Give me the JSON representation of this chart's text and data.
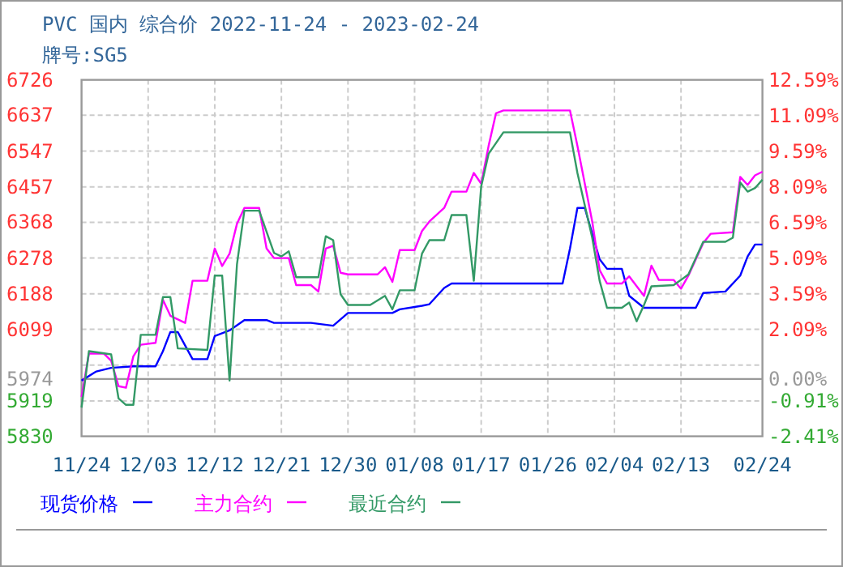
{
  "chart_data": {
    "type": "line",
    "title": "PVC 国内 综合价 2022-11-24 - 2023-02-24",
    "subtitle": "牌号:SG5",
    "xlim": [
      "2022-11-24",
      "2023-02-24"
    ],
    "xticks": [
      {
        "value": "2022-11-24",
        "label": "11/24"
      },
      {
        "value": "2022-12-03",
        "label": "12/03"
      },
      {
        "value": "2022-12-12",
        "label": "12/12"
      },
      {
        "value": "2022-12-21",
        "label": "12/21"
      },
      {
        "value": "2022-12-30",
        "label": "12/30"
      },
      {
        "value": "2023-01-08",
        "label": "01/08"
      },
      {
        "value": "2023-01-17",
        "label": "01/17"
      },
      {
        "value": "2023-01-26",
        "label": "01/26"
      },
      {
        "value": "2023-02-04",
        "label": "02/04"
      },
      {
        "value": "2023-02-13",
        "label": "02/13"
      },
      {
        "value": "2023-02-24",
        "label": "02/24"
      }
    ],
    "ylim": [
      5830,
      6726
    ],
    "yticks": [
      5830,
      5919,
      5974,
      {
        "value": 6009,
        "label": null
      },
      6099,
      6188,
      6278,
      6368,
      6457,
      6547,
      6637,
      6726
    ],
    "y2lim": [
      -2.41,
      12.59
    ],
    "y2ticks": [
      {
        "value": -2.41,
        "label": "-2.41%"
      },
      {
        "value": -0.91,
        "label": "-0.91%"
      },
      {
        "value": 0,
        "label": "0.00%"
      },
      {
        "value": 2.09,
        "label": "2.09%"
      },
      {
        "value": 3.59,
        "label": "3.59%"
      },
      {
        "value": 5.09,
        "label": "5.09%"
      },
      {
        "value": 6.59,
        "label": "6.59%"
      },
      {
        "value": 8.09,
        "label": "8.09%"
      },
      {
        "value": 9.59,
        "label": "9.59%"
      },
      {
        "value": 11.09,
        "label": "11.09%"
      },
      {
        "value": 12.59,
        "label": "12.59%"
      }
    ],
    "ref_lines": [
      {
        "axis": "y",
        "value": 5974,
        "color": "#999999"
      }
    ],
    "grid": true,
    "legend": "bottom",
    "series": [
      {
        "name": "现货价格",
        "color": "#0000ff",
        "x": [
          "2022-11-24",
          "2022-11-26",
          "2022-11-28",
          "2022-12-01",
          "2022-12-04",
          "2022-12-05",
          "2022-12-06",
          "2022-12-07",
          "2022-12-09",
          "2022-12-11",
          "2022-12-12",
          "2022-12-14",
          "2022-12-16",
          "2022-12-19",
          "2022-12-20",
          "2022-12-25",
          "2022-12-28",
          "2022-12-30",
          "2023-01-05",
          "2023-01-06",
          "2023-01-09",
          "2023-01-10",
          "2023-01-12",
          "2023-01-13",
          "2023-01-28",
          "2023-01-29",
          "2023-01-30",
          "2023-01-31",
          "2023-02-02",
          "2023-02-03",
          "2023-02-05",
          "2023-02-06",
          "2023-02-08",
          "2023-02-15",
          "2023-02-16",
          "2023-02-19",
          "2023-02-21",
          "2023-02-22",
          "2023-02-23",
          "2023-02-24"
        ],
        "values": [
          5970,
          5993,
          6002,
          6006,
          6006,
          6044,
          6092,
          6092,
          6024,
          6024,
          6082,
          6096,
          6122,
          6122,
          6115,
          6115,
          6108,
          6140,
          6140,
          6149,
          6158,
          6162,
          6203,
          6214,
          6214,
          6302,
          6404,
          6404,
          6275,
          6251,
          6251,
          6183,
          6153,
          6153,
          6190,
          6194,
          6234,
          6282,
          6312,
          6312
        ]
      },
      {
        "name": "主力合约",
        "color": "#ff00ff",
        "x": [
          "2022-11-24",
          "2022-11-25",
          "2022-11-27",
          "2022-11-28",
          "2022-11-29",
          "2022-11-30",
          "2022-12-01",
          "2022-12-02",
          "2022-12-04",
          "2022-12-05",
          "2022-12-06",
          "2022-12-08",
          "2022-12-09",
          "2022-12-11",
          "2022-12-12",
          "2022-12-13",
          "2022-12-14",
          "2022-12-15",
          "2022-12-16",
          "2022-12-18",
          "2022-12-19",
          "2022-12-20",
          "2022-12-22",
          "2022-12-23",
          "2022-12-25",
          "2022-12-26",
          "2022-12-27",
          "2022-12-28",
          "2022-12-29",
          "2022-12-30",
          "2023-01-03",
          "2023-01-04",
          "2023-01-05",
          "2023-01-06",
          "2023-01-08",
          "2023-01-09",
          "2023-01-10",
          "2023-01-12",
          "2023-01-13",
          "2023-01-15",
          "2023-01-16",
          "2023-01-17",
          "2023-01-18",
          "2023-01-19",
          "2023-01-20",
          "2023-01-29",
          "2023-01-30",
          "2023-02-01",
          "2023-02-02",
          "2023-02-03",
          "2023-02-05",
          "2023-02-06",
          "2023-02-08",
          "2023-02-09",
          "2023-02-10",
          "2023-02-12",
          "2023-02-13",
          "2023-02-14",
          "2023-02-16",
          "2023-02-17",
          "2023-02-20",
          "2023-02-21",
          "2023-02-22",
          "2023-02-23",
          "2023-02-24"
        ],
        "values": [
          5929,
          6038,
          6038,
          6020,
          5956,
          5952,
          6031,
          6060,
          6065,
          6173,
          6133,
          6115,
          6221,
          6221,
          6302,
          6258,
          6289,
          6364,
          6404,
          6404,
          6302,
          6278,
          6278,
          6210,
          6210,
          6194,
          6302,
          6309,
          6241,
          6237,
          6237,
          6255,
          6218,
          6298,
          6298,
          6346,
          6370,
          6404,
          6445,
          6445,
          6492,
          6465,
          6560,
          6642,
          6649,
          6649,
          6560,
          6370,
          6248,
          6214,
          6214,
          6232,
          6183,
          6259,
          6223,
          6223,
          6201,
          6234,
          6316,
          6339,
          6343,
          6482,
          6462,
          6486,
          6495
        ]
      },
      {
        "name": "最近合约",
        "color": "#339966",
        "x": [
          "2022-11-24",
          "2022-11-25",
          "2022-11-28",
          "2022-11-29",
          "2022-11-30",
          "2022-12-01",
          "2022-12-02",
          "2022-12-04",
          "2022-12-05",
          "2022-12-06",
          "2022-12-07",
          "2022-12-11",
          "2022-12-12",
          "2022-12-13",
          "2022-12-14",
          "2022-12-15",
          "2022-12-16",
          "2022-12-18",
          "2022-12-20",
          "2022-12-21",
          "2022-12-22",
          "2022-12-23",
          "2022-12-26",
          "2022-12-27",
          "2022-12-28",
          "2022-12-29",
          "2022-12-30",
          "2023-01-02",
          "2023-01-04",
          "2023-01-05",
          "2023-01-06",
          "2023-01-08",
          "2023-01-09",
          "2023-01-10",
          "2023-01-12",
          "2023-01-13",
          "2023-01-15",
          "2023-01-16",
          "2023-01-17",
          "2023-01-18",
          "2023-01-20",
          "2023-01-29",
          "2023-01-30",
          "2023-02-01",
          "2023-02-02",
          "2023-02-03",
          "2023-02-05",
          "2023-02-06",
          "2023-02-07",
          "2023-02-08",
          "2023-02-09",
          "2023-02-12",
          "2023-02-13",
          "2023-02-14",
          "2023-02-16",
          "2023-02-19",
          "2023-02-20",
          "2023-02-21",
          "2023-02-22",
          "2023-02-23",
          "2023-02-24"
        ],
        "values": [
          5902,
          6044,
          6036,
          5925,
          5909,
          5909,
          6085,
          6085,
          6180,
          6180,
          6051,
          6047,
          6234,
          6234,
          5970,
          6262,
          6397,
          6397,
          6291,
          6282,
          6295,
          6230,
          6230,
          6333,
          6323,
          6187,
          6160,
          6160,
          6183,
          6149,
          6197,
          6197,
          6289,
          6323,
          6323,
          6386,
          6386,
          6221,
          6458,
          6540,
          6594,
          6594,
          6492,
          6329,
          6221,
          6153,
          6153,
          6166,
          6119,
          6160,
          6207,
          6210,
          6223,
          6237,
          6319,
          6319,
          6329,
          6468,
          6445,
          6454,
          6475
        ]
      }
    ]
  }
}
